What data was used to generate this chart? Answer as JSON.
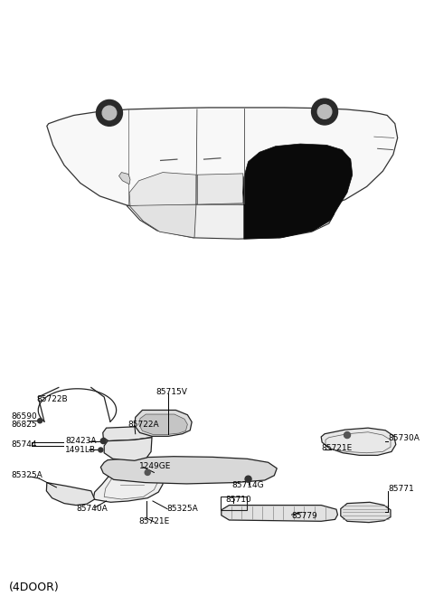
{
  "bg_color": "#ffffff",
  "title": "(4DOOR)",
  "title_fontsize": 9,
  "label_fontsize": 6.5,
  "lc": "#000000",
  "labels": [
    {
      "text": "85721E",
      "xf": 0.355,
      "yf": 0.878,
      "ha": "center"
    },
    {
      "text": "85740A",
      "xf": 0.175,
      "yf": 0.856,
      "ha": "left"
    },
    {
      "text": "85325A",
      "xf": 0.385,
      "yf": 0.856,
      "ha": "left"
    },
    {
      "text": "85325A",
      "xf": 0.025,
      "yf": 0.8,
      "ha": "left"
    },
    {
      "text": "1249GE",
      "xf": 0.32,
      "yf": 0.784,
      "ha": "left"
    },
    {
      "text": "85744",
      "xf": 0.025,
      "yf": 0.748,
      "ha": "left"
    },
    {
      "text": "1491LB",
      "xf": 0.15,
      "yf": 0.757,
      "ha": "left"
    },
    {
      "text": "82423A",
      "xf": 0.15,
      "yf": 0.742,
      "ha": "left"
    },
    {
      "text": "85710",
      "xf": 0.52,
      "yf": 0.84,
      "ha": "left"
    },
    {
      "text": "85779",
      "xf": 0.672,
      "yf": 0.868,
      "ha": "left"
    },
    {
      "text": "85714G",
      "xf": 0.535,
      "yf": 0.816,
      "ha": "left"
    },
    {
      "text": "85771",
      "xf": 0.895,
      "yf": 0.822,
      "ha": "left"
    },
    {
      "text": "85721E",
      "xf": 0.74,
      "yf": 0.754,
      "ha": "left"
    },
    {
      "text": "85730A",
      "xf": 0.895,
      "yf": 0.737,
      "ha": "left"
    },
    {
      "text": "86825",
      "xf": 0.025,
      "yf": 0.714,
      "ha": "left"
    },
    {
      "text": "86590",
      "xf": 0.025,
      "yf": 0.7,
      "ha": "left"
    },
    {
      "text": "85722A",
      "xf": 0.295,
      "yf": 0.714,
      "ha": "left"
    },
    {
      "text": "85722B",
      "xf": 0.085,
      "yf": 0.672,
      "ha": "left"
    },
    {
      "text": "85715V",
      "xf": 0.36,
      "yf": 0.66,
      "ha": "left"
    }
  ]
}
